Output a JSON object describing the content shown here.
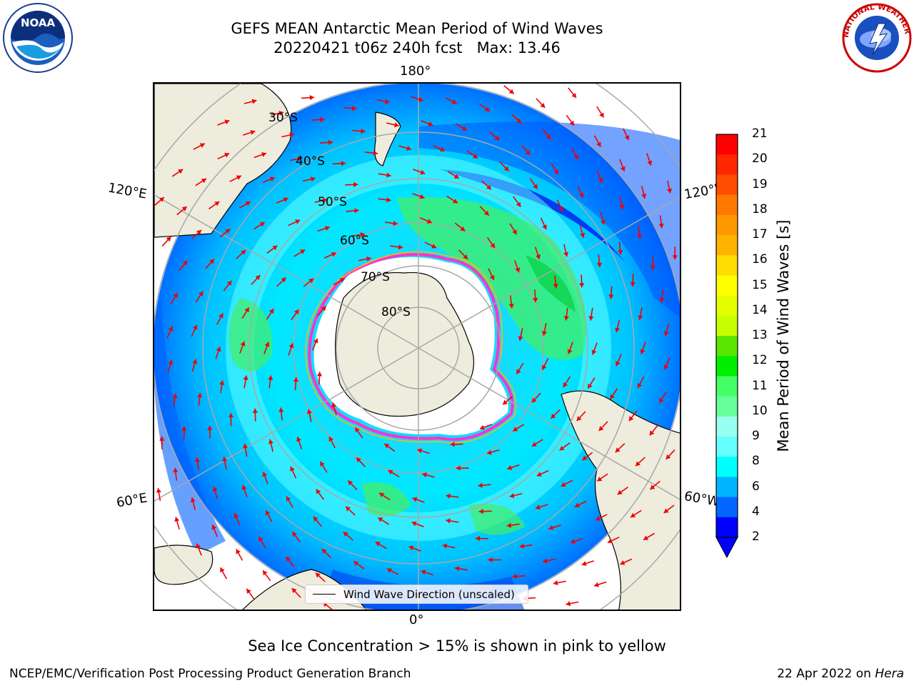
{
  "header": {
    "title_line1": "GEFS MEAN Antarctic Mean Period of Wind Waves",
    "title_line2": "20220421 t06z 240h fcst   Max: 13.46"
  },
  "logos": {
    "left": {
      "name": "noaa-logo",
      "text": "NOAA"
    },
    "right": {
      "name": "nws-logo",
      "text": "NATIONAL WEATHER SERVICE"
    }
  },
  "map": {
    "projection": "south-polar-stereographic",
    "longitude_labels": {
      "top": "180°",
      "bottom": "0°",
      "upper_left": "120°E",
      "upper_right": "120°W",
      "lower_left": "60°E",
      "lower_right": "60°W"
    },
    "latitude_labels": [
      "30°S",
      "40°S",
      "50°S",
      "60°S",
      "70°S",
      "80°S"
    ],
    "legend": {
      "label": "Wind Wave Direction (unscaled)"
    }
  },
  "colorbar": {
    "label": "Mean Period of Wind Waves [s]",
    "ticks": [
      "21",
      "20",
      "19",
      "18",
      "17",
      "16",
      "15",
      "14",
      "13",
      "12",
      "11",
      "10",
      "9",
      "8",
      "6",
      "4",
      "2"
    ],
    "colors": [
      "#ff0000",
      "#ff2600",
      "#ff4c00",
      "#ff7800",
      "#ff9900",
      "#ffb300",
      "#ffdd00",
      "#ffff00",
      "#e6ff00",
      "#c8ff00",
      "#5ae600",
      "#00ee00",
      "#44ff66",
      "#66ff99",
      "#99ffee",
      "#66ffff",
      "#00ffff",
      "#00b4ff",
      "#0066ff",
      "#0000ff"
    ]
  },
  "caption": "Sea Ice Concentration > 15% is shown in pink to yellow",
  "footer": {
    "left": "NCEP/EMC/Verification Post Processing Product Generation Branch",
    "right_date": "22 Apr 2022 on",
    "right_host": "Hera"
  }
}
